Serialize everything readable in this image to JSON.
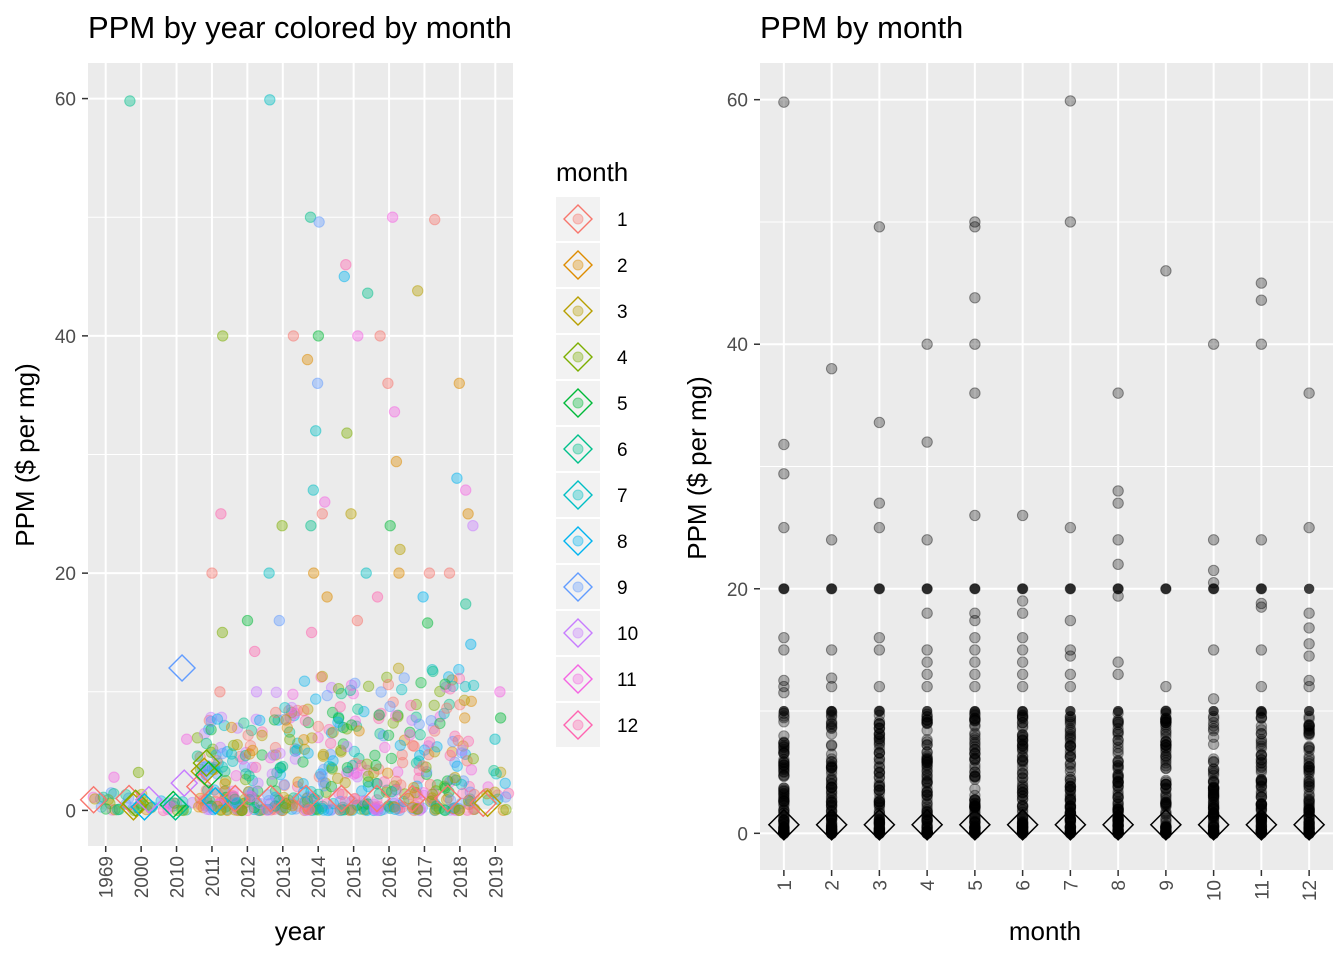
{
  "chart_data": [
    {
      "type": "scatter",
      "title": "PPM by year colored by month",
      "xlabel": "year",
      "ylabel": "PPM ($ per mg)",
      "categories": [
        "1969",
        "2000",
        "2010",
        "2011",
        "2012",
        "2013",
        "2014",
        "2015",
        "2016",
        "2017",
        "2018",
        "2019"
      ],
      "yticks": [
        0,
        20,
        40,
        60
      ],
      "ylim": [
        -3,
        63
      ],
      "grid": true,
      "legend": {
        "title": "month",
        "placement": "right",
        "entries": [
          "1",
          "2",
          "3",
          "4",
          "5",
          "6",
          "7",
          "8",
          "9",
          "10",
          "11",
          "12"
        ],
        "colors": [
          "#F8766D",
          "#DE8C00",
          "#B79F00",
          "#7CAE00",
          "#00BA38",
          "#00C08B",
          "#00BFC4",
          "#00B4F0",
          "#619CFF",
          "#C77CFF",
          "#F564E3",
          "#FF64B0"
        ]
      },
      "median_markers": [
        {
          "year": "1969",
          "month": 1,
          "y": 0.9
        },
        {
          "year": "2000",
          "month": 1,
          "y": 1.0
        },
        {
          "year": "2000",
          "month": 3,
          "y": 0.3
        },
        {
          "year": "2000",
          "month": 4,
          "y": 0.6
        },
        {
          "year": "2000",
          "month": 8,
          "y": 0.3
        },
        {
          "year": "2000",
          "month": 10,
          "y": 0.9
        },
        {
          "year": "2010",
          "month": 5,
          "y": 0.5
        },
        {
          "year": "2010",
          "month": 6,
          "y": 0.3
        },
        {
          "year": "2010",
          "month": 9,
          "y": 12.0
        },
        {
          "year": "2010",
          "month": 10,
          "y": 2.3
        },
        {
          "year": "2011",
          "month": 1,
          "y": 2.0
        },
        {
          "year": "2011",
          "month": 3,
          "y": 3.3
        },
        {
          "year": "2011",
          "month": 4,
          "y": 4.0
        },
        {
          "year": "2011",
          "month": 5,
          "y": 3.0
        },
        {
          "year": "2011",
          "month": 8,
          "y": 0.8
        },
        {
          "year": "2012",
          "month": 1,
          "y": 1.0
        },
        {
          "year": "2013",
          "month": 1,
          "y": 1.0
        },
        {
          "year": "2014",
          "month": 1,
          "y": 1.0
        },
        {
          "year": "2015",
          "month": 1,
          "y": 1.0
        },
        {
          "year": "2016",
          "month": 1,
          "y": 1.0
        },
        {
          "year": "2017",
          "month": 1,
          "y": 1.0
        },
        {
          "year": "2018",
          "month": 1,
          "y": 1.0
        },
        {
          "year": "2019",
          "month": 1,
          "y": 0.6
        },
        {
          "year": "2019",
          "month": 3,
          "y": 0.6
        }
      ],
      "outliers": [
        {
          "year": "1969",
          "y": 2.8
        },
        {
          "year": "2000",
          "y": 59.8
        },
        {
          "year": "2000",
          "y": 3.2
        },
        {
          "year": "2010",
          "y": 6.0
        },
        {
          "year": "2011",
          "y": 40.0
        },
        {
          "year": "2011",
          "y": 25.0
        },
        {
          "year": "2011",
          "y": 20.0
        },
        {
          "year": "2011",
          "y": 15.0
        },
        {
          "year": "2011",
          "y": 10.0
        },
        {
          "year": "2012",
          "y": 16.0
        },
        {
          "year": "2012",
          "y": 13.4
        },
        {
          "year": "2012",
          "y": 10.0
        },
        {
          "year": "2013",
          "y": 59.9
        },
        {
          "year": "2013",
          "y": 40.0
        },
        {
          "year": "2013",
          "y": 24.0
        },
        {
          "year": "2013",
          "y": 20.0
        },
        {
          "year": "2013",
          "y": 16.0
        },
        {
          "year": "2014",
          "y": 50.0
        },
        {
          "year": "2014",
          "y": 49.6
        },
        {
          "year": "2014",
          "y": 40.0
        },
        {
          "year": "2014",
          "y": 38.0
        },
        {
          "year": "2014",
          "y": 36.0
        },
        {
          "year": "2014",
          "y": 32.0
        },
        {
          "year": "2014",
          "y": 27.0
        },
        {
          "year": "2014",
          "y": 26.0
        },
        {
          "year": "2014",
          "y": 25.0
        },
        {
          "year": "2014",
          "y": 24.0
        },
        {
          "year": "2014",
          "y": 20.0
        },
        {
          "year": "2014",
          "y": 18.0
        },
        {
          "year": "2014",
          "y": 15.0
        },
        {
          "year": "2015",
          "y": 46.0
        },
        {
          "year": "2015",
          "y": 45.0
        },
        {
          "year": "2015",
          "y": 43.6
        },
        {
          "year": "2015",
          "y": 40.0
        },
        {
          "year": "2015",
          "y": 31.8
        },
        {
          "year": "2015",
          "y": 25.0
        },
        {
          "year": "2015",
          "y": 20.0
        },
        {
          "year": "2015",
          "y": 16.0
        },
        {
          "year": "2016",
          "y": 50.0
        },
        {
          "year": "2016",
          "y": 40.0
        },
        {
          "year": "2016",
          "y": 36.0
        },
        {
          "year": "2016",
          "y": 33.6
        },
        {
          "year": "2016",
          "y": 29.4
        },
        {
          "year": "2016",
          "y": 24.0
        },
        {
          "year": "2016",
          "y": 22.0
        },
        {
          "year": "2016",
          "y": 20.0
        },
        {
          "year": "2016",
          "y": 18.0
        },
        {
          "year": "2017",
          "y": 49.8
        },
        {
          "year": "2017",
          "y": 43.8
        },
        {
          "year": "2017",
          "y": 20.0
        },
        {
          "year": "2017",
          "y": 18.0
        },
        {
          "year": "2017",
          "y": 15.8
        },
        {
          "year": "2018",
          "y": 36.0
        },
        {
          "year": "2018",
          "y": 28.0
        },
        {
          "year": "2018",
          "y": 27.0
        },
        {
          "year": "2018",
          "y": 25.0
        },
        {
          "year": "2018",
          "y": 24.0
        },
        {
          "year": "2018",
          "y": 20.0
        },
        {
          "year": "2018",
          "y": 17.4
        },
        {
          "year": "2018",
          "y": 14.0
        },
        {
          "year": "2019",
          "y": 10.0
        },
        {
          "year": "2019",
          "y": 7.8
        },
        {
          "year": "2019",
          "y": 6.0
        }
      ],
      "bulk_max": {
        "1969": 1.5,
        "2000": 1.5,
        "2010": 1.0,
        "2011": 8.0,
        "2012": 8.0,
        "2013": 10.0,
        "2014": 12.0,
        "2015": 12.0,
        "2016": 12.0,
        "2017": 12.0,
        "2018": 12.0,
        "2019": 5.0
      }
    },
    {
      "type": "scatter",
      "title": "PPM by month",
      "xlabel": "month",
      "ylabel": "PPM ($ per mg)",
      "categories": [
        "1",
        "2",
        "3",
        "4",
        "5",
        "6",
        "7",
        "8",
        "9",
        "10",
        "11",
        "12"
      ],
      "yticks": [
        0,
        20,
        40,
        60
      ],
      "ylim": [
        -3,
        63
      ],
      "grid": true,
      "median_y": 0.7,
      "outliers": {
        "1": [
          59.8,
          31.8,
          29.4,
          25.0,
          20.0,
          16.0,
          15.0,
          12.5,
          12.0,
          11.5
        ],
        "2": [
          38.0,
          24.0,
          20.0,
          15.0,
          12.7,
          12.0
        ],
        "3": [
          49.6,
          33.6,
          27.0,
          25.0,
          20.0,
          16.0,
          15.0,
          12.0
        ],
        "4": [
          40.0,
          32.0,
          24.0,
          20.0,
          18.0,
          15.0,
          14.0,
          13.0,
          12.0
        ],
        "5": [
          50.0,
          49.6,
          43.8,
          40.0,
          36.0,
          26.0,
          20.0,
          18.0,
          17.4,
          16.0,
          15.0,
          14.0,
          13.0,
          12.0
        ],
        "6": [
          26.0,
          20.0,
          19.0,
          18.0,
          16.0,
          15.0,
          14.0,
          13.0,
          12.0
        ],
        "7": [
          59.9,
          50.0,
          25.0,
          20.0,
          17.4,
          15.0,
          14.5,
          13.0,
          12.0
        ],
        "8": [
          36.0,
          28.0,
          27.0,
          24.0,
          22.0,
          20.0,
          19.4,
          14.0,
          13.0
        ],
        "9": [
          46.0,
          20.0,
          12.0
        ],
        "10": [
          40.0,
          24.0,
          21.5,
          20.5,
          20.0,
          15.0,
          11.0
        ],
        "11": [
          45.0,
          43.6,
          40.0,
          24.0,
          20.0,
          18.8,
          18.5,
          15.0,
          12.0
        ],
        "12": [
          36.0,
          25.0,
          18.0,
          16.8,
          15.5,
          14.5,
          12.5,
          12.0
        ]
      },
      "bulk_max": 10.0
    }
  ]
}
